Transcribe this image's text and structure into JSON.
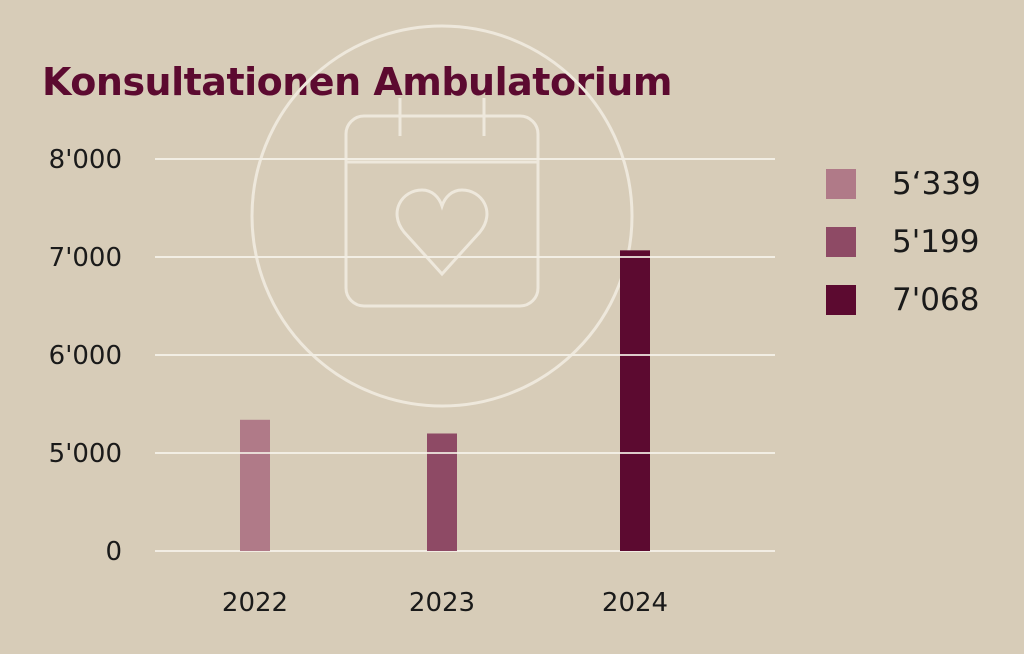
{
  "chart_data": {
    "type": "bar",
    "title": "Konsultationen Ambulatorium",
    "categories": [
      "2022",
      "2023",
      "2024"
    ],
    "values": [
      5339,
      5199,
      7068
    ],
    "colors": [
      "#b07a88",
      "#8e4a65",
      "#5c0a30"
    ],
    "y_ticks": [
      0,
      5000,
      6000,
      7000,
      8000
    ],
    "y_tick_labels": [
      "0",
      "5'000",
      "6'000",
      "7'000",
      "8'000"
    ],
    "y_axis_break": "0 to 5'000 compressed",
    "grid": true,
    "legend": {
      "position": "right",
      "entries": [
        {
          "label": "5‘339",
          "color": "#b07a88"
        },
        {
          "label": "5'199",
          "color": "#8e4a65"
        },
        {
          "label": "7'068",
          "color": "#5c0a30"
        }
      ]
    },
    "background_icon": "calendar-heart-icon"
  },
  "colors": {
    "background": "#d7ccb8",
    "title": "#5c0a30",
    "grid": "#f2ede4",
    "icon": "#eee8dc"
  }
}
